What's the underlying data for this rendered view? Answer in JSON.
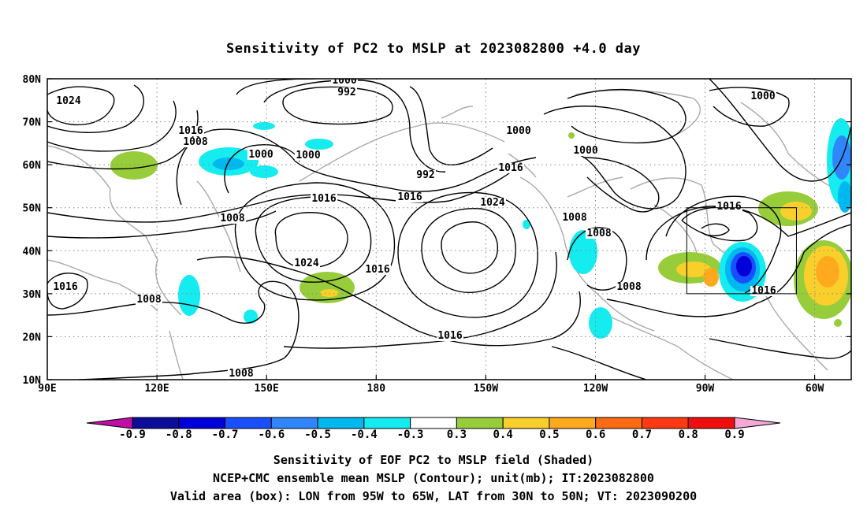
{
  "title": "Sensitivity of PC2 to MSLP at 2023082800 +4.0 day",
  "axes": {
    "lat_ticks": [
      "80N",
      "70N",
      "60N",
      "50N",
      "40N",
      "30N",
      "20N",
      "10N"
    ],
    "lon_ticks": [
      "90E",
      "120E",
      "150E",
      "180",
      "150W",
      "120W",
      "90W",
      "60W"
    ],
    "lat_range": [
      10,
      80
    ],
    "lon_range": [
      90,
      310
    ]
  },
  "colorbar": {
    "labels": [
      "-0.9",
      "-0.8",
      "-0.7",
      "-0.6",
      "-0.5",
      "-0.4",
      "-0.3",
      "0.3",
      "0.4",
      "0.5",
      "0.6",
      "0.7",
      "0.8",
      "0.9"
    ],
    "colors": [
      "#0d0d9a",
      "#0000d8",
      "#1a4fff",
      "#2f86ff",
      "#00b8f0",
      "#14ecf0",
      "#ffffff",
      "#97cd3a",
      "#f9d02b",
      "#ffaa1e",
      "#ff6a14",
      "#ff3a12",
      "#ee0e0e"
    ],
    "low_extend_color": "#c10fa6",
    "high_extend_color": "#f5a8d8"
  },
  "contour_labels": [
    "1000",
    "992",
    "1024",
    "1016",
    "1008",
    "1000",
    "1000",
    "1000",
    "992",
    "1008",
    "1016",
    "1024",
    "1016",
    "1000",
    "1000",
    "1016",
    "1008",
    "1024",
    "1016",
    "1008",
    "1008",
    "1016",
    "1016",
    "1008",
    "1008",
    "1016",
    "1008",
    "1016"
  ],
  "box": {
    "label": "Valid area",
    "lon": [
      -95,
      -65
    ],
    "lat": [
      30,
      50
    ]
  },
  "captions": [
    "Sensitivity of EOF PC2 to MSLP field (Shaded)",
    "NCEP+CMC ensemble mean MSLP (Contour); unit(mb); IT:2023082800",
    "Valid area (box): LON from 95W to 65W, LAT from 30N to 50N; VT: 2023090200"
  ]
}
